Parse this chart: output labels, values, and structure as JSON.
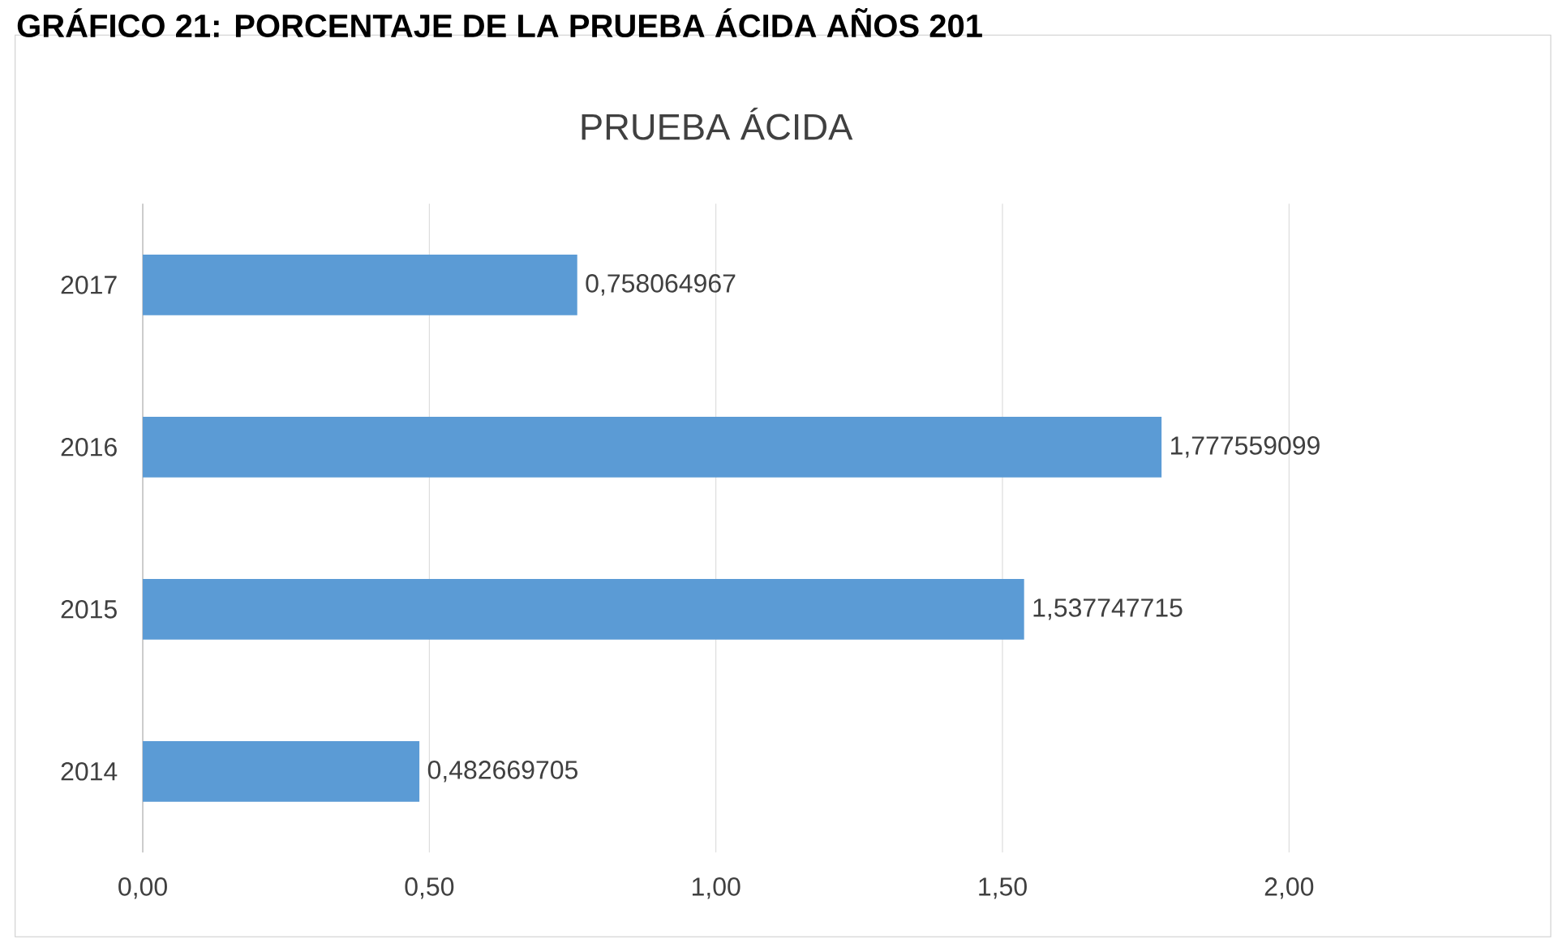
{
  "chart_data": {
    "type": "bar",
    "orientation": "horizontal",
    "title": "PRUEBA ÁCIDA",
    "annotations": [
      "GRÁFICO 21: PORCENTAJE DE LA PRUEBA ÁCIDA AÑOS 201"
    ],
    "categories": [
      "2017",
      "2016",
      "2015",
      "2014"
    ],
    "values": [
      0.758064967,
      1.777559099,
      1.537747715,
      0.482669705
    ],
    "value_labels": [
      "0,758064967",
      "1,777559099",
      "1,537747715",
      "0,482669705"
    ],
    "color": "#5b9bd5",
    "xlim": [
      0,
      2
    ],
    "xticks": [
      {
        "value": 0,
        "label": "0,00"
      },
      {
        "value": 0.5,
        "label": "0,50"
      },
      {
        "value": 1,
        "label": "1,00"
      },
      {
        "value": 1.5,
        "label": "1,50"
      },
      {
        "value": 2,
        "label": "2,00"
      }
    ],
    "grid": "x"
  }
}
